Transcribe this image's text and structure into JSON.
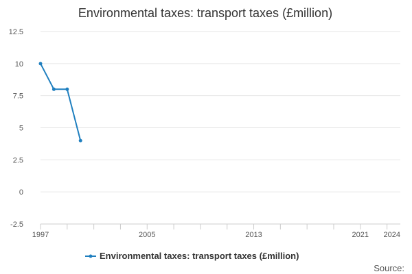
{
  "chart_data": {
    "type": "line",
    "title": "Environmental taxes: transport taxes (£million)",
    "xlabel": "",
    "ylabel": "",
    "xlim": [
      1997,
      2024
    ],
    "ylim": [
      -2.5,
      12.5
    ],
    "y_ticks": [
      "-2.5",
      "0",
      "2.5",
      "5",
      "7.5",
      "10",
      "12.5"
    ],
    "x_tick_labels": [
      "1997",
      "2005",
      "2013",
      "2021",
      "2024"
    ],
    "grid": true,
    "legend_position": "bottom-center",
    "series": [
      {
        "name": "Environmental taxes: transport taxes (£million)",
        "color": "#1f7fbf",
        "x": [
          1997,
          1998,
          1999,
          2000
        ],
        "values": [
          10,
          8,
          8,
          4
        ]
      }
    ],
    "source_label": "Source:"
  }
}
